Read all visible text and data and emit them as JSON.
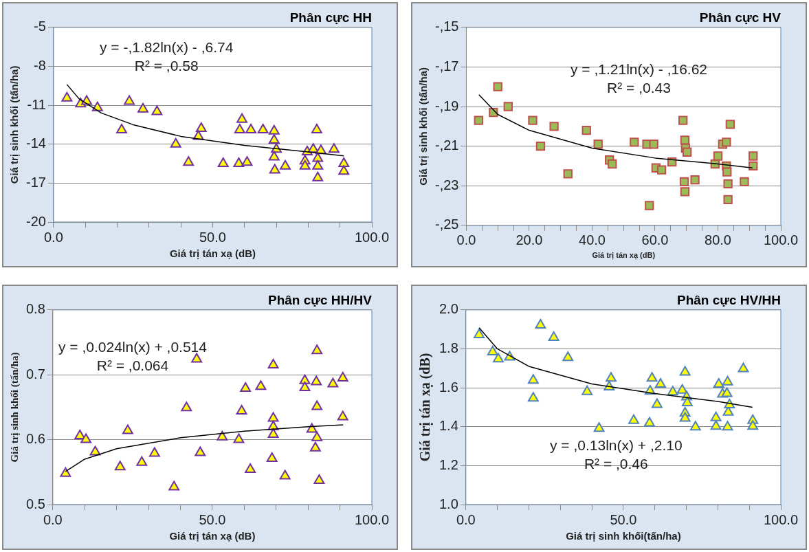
{
  "chart_data": [
    {
      "type": "scatter",
      "title": "Phân cực HH",
      "xlabel": "Giá trị tán xạ (dB)",
      "ylabel": "Giá trị sinh khối (tấn/ha)",
      "annotations": [
        "y = -,1.82ln(x) - ,6.74",
        "R² = ,0.58"
      ],
      "xlim": [
        0,
        100
      ],
      "xticks": [
        {
          "value": 0,
          "label": "0.0"
        },
        {
          "value": 10,
          "label": null
        },
        {
          "value": 20,
          "label": null
        },
        {
          "value": 30,
          "label": null
        },
        {
          "value": 40,
          "label": null
        },
        {
          "value": 50,
          "label": "50.0"
        },
        {
          "value": 60,
          "label": null
        },
        {
          "value": 70,
          "label": null
        },
        {
          "value": 80,
          "label": null
        },
        {
          "value": 90,
          "label": null
        },
        {
          "value": 100,
          "label": "100.0"
        }
      ],
      "ylim": [
        -20,
        -5
      ],
      "yticks": [
        -20,
        -17,
        -14,
        -11,
        -8,
        -5
      ],
      "grid": "y",
      "legend": false,
      "marker": "triangle",
      "series": [
        {
          "color": "#ffff00",
          "x": [
            4.2,
            8.5,
            10.4,
            13.8,
            23.8,
            28.1,
            32.5,
            21.4,
            38.4,
            42.4,
            46.4,
            45.5,
            53.3,
            58.2,
            58.5,
            59.2,
            60.8,
            62.0,
            65.8,
            69.3,
            69.3,
            70.0,
            69.3,
            69.5,
            72.8,
            79.0,
            79.0,
            79.7,
            81.6,
            82.7,
            83.0,
            83.0,
            83.0,
            84.0,
            88.1,
            91.2,
            91.2
          ],
          "values": [
            -10.45,
            -10.9,
            -10.7,
            -11.2,
            -10.7,
            -11.3,
            -11.5,
            -12.9,
            -14.0,
            -15.4,
            -12.8,
            -13.4,
            -15.5,
            -15.5,
            -12.9,
            -12.1,
            -15.4,
            -12.9,
            -12.9,
            -13.0,
            -13.7,
            -14.4,
            -15.0,
            -16.0,
            -15.7,
            -15.3,
            -15.7,
            -14.6,
            -14.4,
            -12.9,
            -15.1,
            -15.7,
            -16.6,
            -14.5,
            -14.4,
            -15.5,
            -16.1
          ]
        },
        {
          "type": "line",
          "color": "#000000",
          "marker": "none",
          "x": [
            4.2,
            8,
            15,
            25,
            40,
            60,
            80,
            91.2
          ],
          "values": [
            -9.4,
            -10.5,
            -11.6,
            -12.5,
            -13.4,
            -14.1,
            -14.6,
            -14.9
          ]
        }
      ]
    },
    {
      "type": "scatter",
      "title": "Phân cực HV",
      "xlabel": "Giá trị tán xạ (dB)",
      "ylabel": "Giá trị sinh khối (tấn/ha)",
      "annotations": [
        "y = ,1.21ln(x) - ,16.62",
        "R² = ,0.43"
      ],
      "xlim": [
        0,
        100
      ],
      "xticks": [
        {
          "value": 0,
          "label": "0.0"
        },
        {
          "value": 5,
          "label": null
        },
        {
          "value": 10,
          "label": null
        },
        {
          "value": 15,
          "label": null
        },
        {
          "value": 20,
          "label": "20.0"
        },
        {
          "value": 25,
          "label": null
        },
        {
          "value": 30,
          "label": null
        },
        {
          "value": 35,
          "label": null
        },
        {
          "value": 40,
          "label": "40.0"
        },
        {
          "value": 45,
          "label": null
        },
        {
          "value": 50,
          "label": null
        },
        {
          "value": 55,
          "label": null
        },
        {
          "value": 60,
          "label": "60.0"
        },
        {
          "value": 65,
          "label": null
        },
        {
          "value": 70,
          "label": null
        },
        {
          "value": 75,
          "label": null
        },
        {
          "value": 80,
          "label": "80.0"
        },
        {
          "value": 85,
          "label": null
        },
        {
          "value": 90,
          "label": null
        },
        {
          "value": 95,
          "label": null
        },
        {
          "value": 100,
          "label": "100.0"
        }
      ],
      "ylim": [
        -25,
        -15
      ],
      "yticks": [
        {
          "value": -25,
          "label": "-,25"
        },
        {
          "value": -23,
          "label": "-,23"
        },
        {
          "value": -21,
          "label": "-,21"
        },
        {
          "value": -19,
          "label": "-,19"
        },
        {
          "value": -17,
          "label": "-,17"
        },
        {
          "value": -15,
          "label": "-,15"
        }
      ],
      "grid": "y",
      "legend": false,
      "marker": "square",
      "series": [
        {
          "color": "#9bbb59",
          "x": [
            3.9,
            8.6,
            10.0,
            13.3,
            21.1,
            23.6,
            27.9,
            32.3,
            38.2,
            41.9,
            45.5,
            46.4,
            53.4,
            57.4,
            59.6,
            58.2,
            60.3,
            62.1,
            65.4,
            68.9,
            69.5,
            69.7,
            70.2,
            69.3,
            69.5,
            72.7,
            79.1,
            80.0,
            81.5,
            82.7,
            82.7,
            82.9,
            83.2,
            83.2,
            83.9,
            88.4,
            91.2,
            91.2
          ],
          "values": [
            -19.7,
            -19.3,
            -18.0,
            -19.0,
            -19.7,
            -21.0,
            -20.0,
            -22.4,
            -20.2,
            -20.9,
            -21.7,
            -21.9,
            -20.8,
            -20.9,
            -20.9,
            -24.0,
            -22.1,
            -22.2,
            -21.8,
            -19.7,
            -20.7,
            -21.1,
            -21.3,
            -22.8,
            -23.3,
            -22.7,
            -21.9,
            -21.5,
            -20.9,
            -20.8,
            -22.0,
            -22.3,
            -22.9,
            -23.7,
            -19.9,
            -22.8,
            -21.5,
            -22.0
          ]
        },
        {
          "type": "line",
          "color": "#000000",
          "marker": "none",
          "x": [
            4,
            10,
            20,
            40,
            60,
            80,
            91
          ],
          "values": [
            -18.4,
            -19.4,
            -20.2,
            -21.1,
            -21.6,
            -21.9,
            -22.1
          ]
        }
      ]
    },
    {
      "type": "scatter",
      "title": "Phân cực HH/HV",
      "xlabel": "Giá trị tán xạ (dB)",
      "ylabel": "Giá trị sinh khối (tấn/ha)",
      "annotations": [
        "y = ,0.024ln(x) + ,0.514",
        "R² = ,0.064"
      ],
      "xlim": [
        0,
        100
      ],
      "xticks": [
        {
          "value": 0,
          "label": "0.0"
        },
        {
          "value": 10,
          "label": null
        },
        {
          "value": 20,
          "label": null
        },
        {
          "value": 30,
          "label": null
        },
        {
          "value": 40,
          "label": null
        },
        {
          "value": 50,
          "label": "50.0"
        },
        {
          "value": 60,
          "label": null
        },
        {
          "value": 70,
          "label": null
        },
        {
          "value": 80,
          "label": null
        },
        {
          "value": 90,
          "label": null
        },
        {
          "value": 100,
          "label": "100.0"
        }
      ],
      "ylim": [
        0.5,
        0.8
      ],
      "yticks": [
        0.5,
        0.6,
        0.7,
        0.8
      ],
      "grid": "y",
      "legend": false,
      "marker": "triangle",
      "series": [
        {
          "color": "#ffff00",
          "x": [
            4.0,
            8.5,
            10.4,
            13.3,
            21.1,
            23.5,
            27.9,
            31.9,
            38.0,
            41.9,
            45.1,
            46.2,
            53.1,
            58.3,
            59.2,
            60.4,
            61.9,
            65.2,
            68.7,
            69.1,
            69.1,
            69.1,
            69.1,
            72.8,
            79.0,
            79.0,
            81.2,
            82.3,
            82.6,
            82.8,
            82.8,
            82.8,
            83.5,
            87.8,
            90.9,
            90.9
          ],
          "values": [
            0.548,
            0.606,
            0.6,
            0.581,
            0.558,
            0.614,
            0.565,
            0.579,
            0.527,
            0.649,
            0.724,
            0.58,
            0.604,
            0.6,
            0.644,
            0.679,
            0.554,
            0.682,
            0.571,
            0.715,
            0.633,
            0.62,
            0.608,
            0.544,
            0.691,
            0.68,
            0.616,
            0.587,
            0.689,
            0.737,
            0.651,
            0.603,
            0.537,
            0.686,
            0.695,
            0.635
          ]
        },
        {
          "type": "line",
          "color": "#000000",
          "marker": "none",
          "x": [
            4,
            10,
            20,
            40,
            60,
            80,
            91
          ],
          "values": [
            0.551,
            0.57,
            0.586,
            0.603,
            0.613,
            0.62,
            0.623
          ]
        }
      ]
    },
    {
      "type": "scatter",
      "title": "Phân cực HV/HH",
      "xlabel": "Giá trị sinh khối(tấn/ha)",
      "ylabel": "Giá trị tán xạ (dB)",
      "annotations": [
        "y = ,0.13ln(x) + ,2.10",
        "R² = ,0.46"
      ],
      "xlim": [
        0,
        100
      ],
      "xticks": [
        {
          "value": 0,
          "label": "0.0"
        },
        {
          "value": 10,
          "label": null
        },
        {
          "value": 20,
          "label": null
        },
        {
          "value": 30,
          "label": null
        },
        {
          "value": 40,
          "label": null
        },
        {
          "value": 50,
          "label": "50.0"
        },
        {
          "value": 60,
          "label": null
        },
        {
          "value": 70,
          "label": null
        },
        {
          "value": 80,
          "label": null
        },
        {
          "value": 90,
          "label": null
        },
        {
          "value": 100,
          "label": "100.0"
        }
      ],
      "ylim": [
        1,
        2
      ],
      "yticks": [
        {
          "value": 1,
          "label": "1.0"
        },
        1.2,
        1.4,
        1.6,
        1.8,
        {
          "value": 2,
          "label": "2.0"
        }
      ],
      "grid": "y",
      "legend": false,
      "marker": "triangle",
      "series": [
        {
          "color": "#ffff00",
          "x": [
            4.2,
            8.5,
            10.3,
            13.9,
            21.4,
            21.4,
            23.7,
            27.9,
            32.4,
            38.5,
            42.3,
            46.1,
            45.5,
            53.3,
            58.3,
            58.5,
            59.1,
            60.7,
            61.8,
            65.7,
            68.7,
            69.6,
            69.6,
            69.6,
            70.1,
            70.3,
            72.9,
            79.4,
            79.4,
            80.3,
            81.5,
            83.1,
            82.9,
            83.3,
            83.7,
            83.1,
            88.1,
            91.1,
            91.1
          ],
          "values": [
            1.872,
            1.784,
            1.748,
            1.757,
            1.638,
            1.546,
            1.922,
            1.858,
            1.755,
            1.58,
            1.391,
            1.649,
            1.604,
            1.432,
            1.418,
            1.583,
            1.649,
            1.514,
            1.618,
            1.578,
            1.587,
            1.68,
            1.47,
            1.443,
            1.553,
            1.523,
            1.398,
            1.446,
            1.402,
            1.618,
            1.567,
            1.629,
            1.57,
            1.474,
            1.512,
            1.398,
            1.697,
            1.432,
            1.402
          ]
        },
        {
          "type": "line",
          "color": "#000000",
          "marker": "none",
          "x": [
            4.2,
            10,
            20,
            40,
            60,
            80,
            91
          ],
          "values": [
            1.908,
            1.8,
            1.71,
            1.62,
            1.57,
            1.53,
            1.5
          ]
        }
      ]
    }
  ]
}
